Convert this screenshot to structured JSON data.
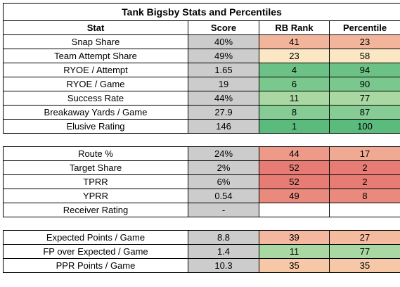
{
  "title": "Tank Bigsby Stats and Percentiles",
  "headers": {
    "stat": "Stat",
    "score": "Score",
    "rb_rank": "RB Rank",
    "percentile": "Percentile"
  },
  "sections": [
    {
      "rows": [
        {
          "stat": "Snap Share",
          "score": "40%",
          "rank": "41",
          "percentile": "23",
          "rank_color": "#f2b59c",
          "pct_color": "#f2b59c"
        },
        {
          "stat": "Team Attempt Share",
          "score": "49%",
          "rank": "23",
          "percentile": "58",
          "rank_color": "#fbe7c4",
          "pct_color": "#fbe7c4"
        },
        {
          "stat": "RYOE / Attempt",
          "score": "1.65",
          "rank": "4",
          "percentile": "94",
          "rank_color": "#6cc286",
          "pct_color": "#6cc286"
        },
        {
          "stat": "RYOE / Game",
          "score": "19",
          "rank": "6",
          "percentile": "90",
          "rank_color": "#7bc88e",
          "pct_color": "#7bc88e"
        },
        {
          "stat": "Success Rate",
          "score": "44%",
          "rank": "11",
          "percentile": "77",
          "rank_color": "#a9d8a3",
          "pct_color": "#a9d8a3"
        },
        {
          "stat": "Breakaway Yards / Game",
          "score": "27.9",
          "rank": "8",
          "percentile": "87",
          "rank_color": "#87cc95",
          "pct_color": "#87cc95"
        },
        {
          "stat": "Elusive Rating",
          "score": "146",
          "rank": "1",
          "percentile": "100",
          "rank_color": "#5bbb7c",
          "pct_color": "#5bbb7c"
        }
      ]
    },
    {
      "rows": [
        {
          "stat": "Route %",
          "score": "24%",
          "rank": "44",
          "percentile": "17",
          "rank_color": "#ed9a88",
          "pct_color": "#f0a993"
        },
        {
          "stat": "Target Share",
          "score": "2%",
          "rank": "52",
          "percentile": "2",
          "rank_color": "#e67c73",
          "pct_color": "#e67c73"
        },
        {
          "stat": "TPRR",
          "score": "6%",
          "rank": "52",
          "percentile": "2",
          "rank_color": "#e67c73",
          "pct_color": "#e67c73"
        },
        {
          "stat": "YPRR",
          "score": "0.54",
          "rank": "49",
          "percentile": "8",
          "rank_color": "#e98a7c",
          "pct_color": "#ea897d"
        },
        {
          "stat": "Receiver Rating",
          "score": "-",
          "rank": "",
          "percentile": "",
          "rank_color": "#ffffff",
          "pct_color": "#ffffff"
        }
      ]
    },
    {
      "rows": [
        {
          "stat": "Expected Points / Game",
          "score": "8.8",
          "rank": "39",
          "percentile": "27",
          "rank_color": "#f3b89f",
          "pct_color": "#f4bb9f"
        },
        {
          "stat": "FP over Expected / Game",
          "score": "1.4",
          "rank": "11",
          "percentile": "77",
          "rank_color": "#a9d8a3",
          "pct_color": "#a9d8a3"
        },
        {
          "stat": "PPR Points / Game",
          "score": "10.3",
          "rank": "35",
          "percentile": "35",
          "rank_color": "#f6c8a7",
          "pct_color": "#f6c8a7"
        }
      ]
    }
  ]
}
